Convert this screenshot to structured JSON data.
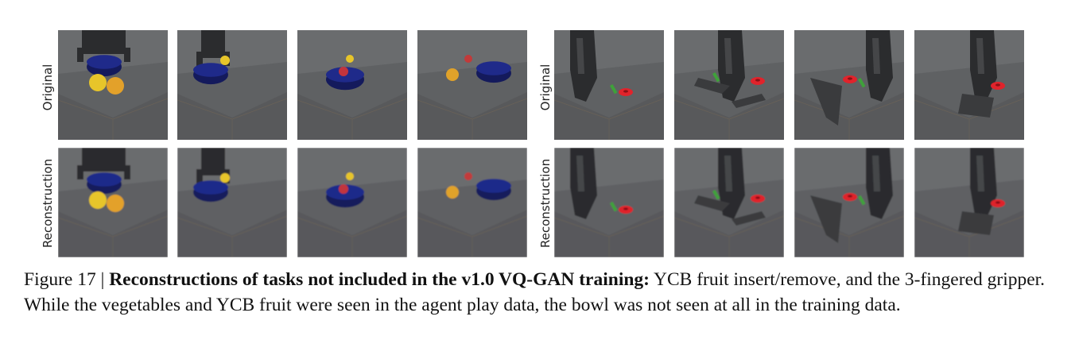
{
  "row_labels": {
    "original": "Original",
    "reconstruction": "Reconstruction"
  },
  "panels": [
    {
      "task": "ycb-fruit",
      "tiles": [
        "bowl-under-gripper",
        "gripper-in-bowl",
        "bowl-with-fruit",
        "fruit-beside-bowl"
      ]
    },
    {
      "task": "3-fingered-gripper",
      "tiles": [
        "gripper-red-ring",
        "gripper-board-peg",
        "gripper-peg-board",
        "gripper-flat-board"
      ]
    }
  ],
  "caption": {
    "figure_label": "Figure 17 | ",
    "bold_title": "Reconstructions of tasks not included in the v1.0 VQ-GAN training:",
    "body": " YCB fruit insert/remove, and the 3-fingered gripper. While the vegetables and YCB fruit were seen in the agent play data, the bowl was not seen at all in the training data."
  },
  "colors": {
    "floor": "#5f6163",
    "bowl": "#1f2a8a",
    "fruit_yellow": "#e7c52a",
    "red_ring": "#e0232b",
    "green_peg": "#3fa13a",
    "gripper": "#2b2c2e"
  }
}
